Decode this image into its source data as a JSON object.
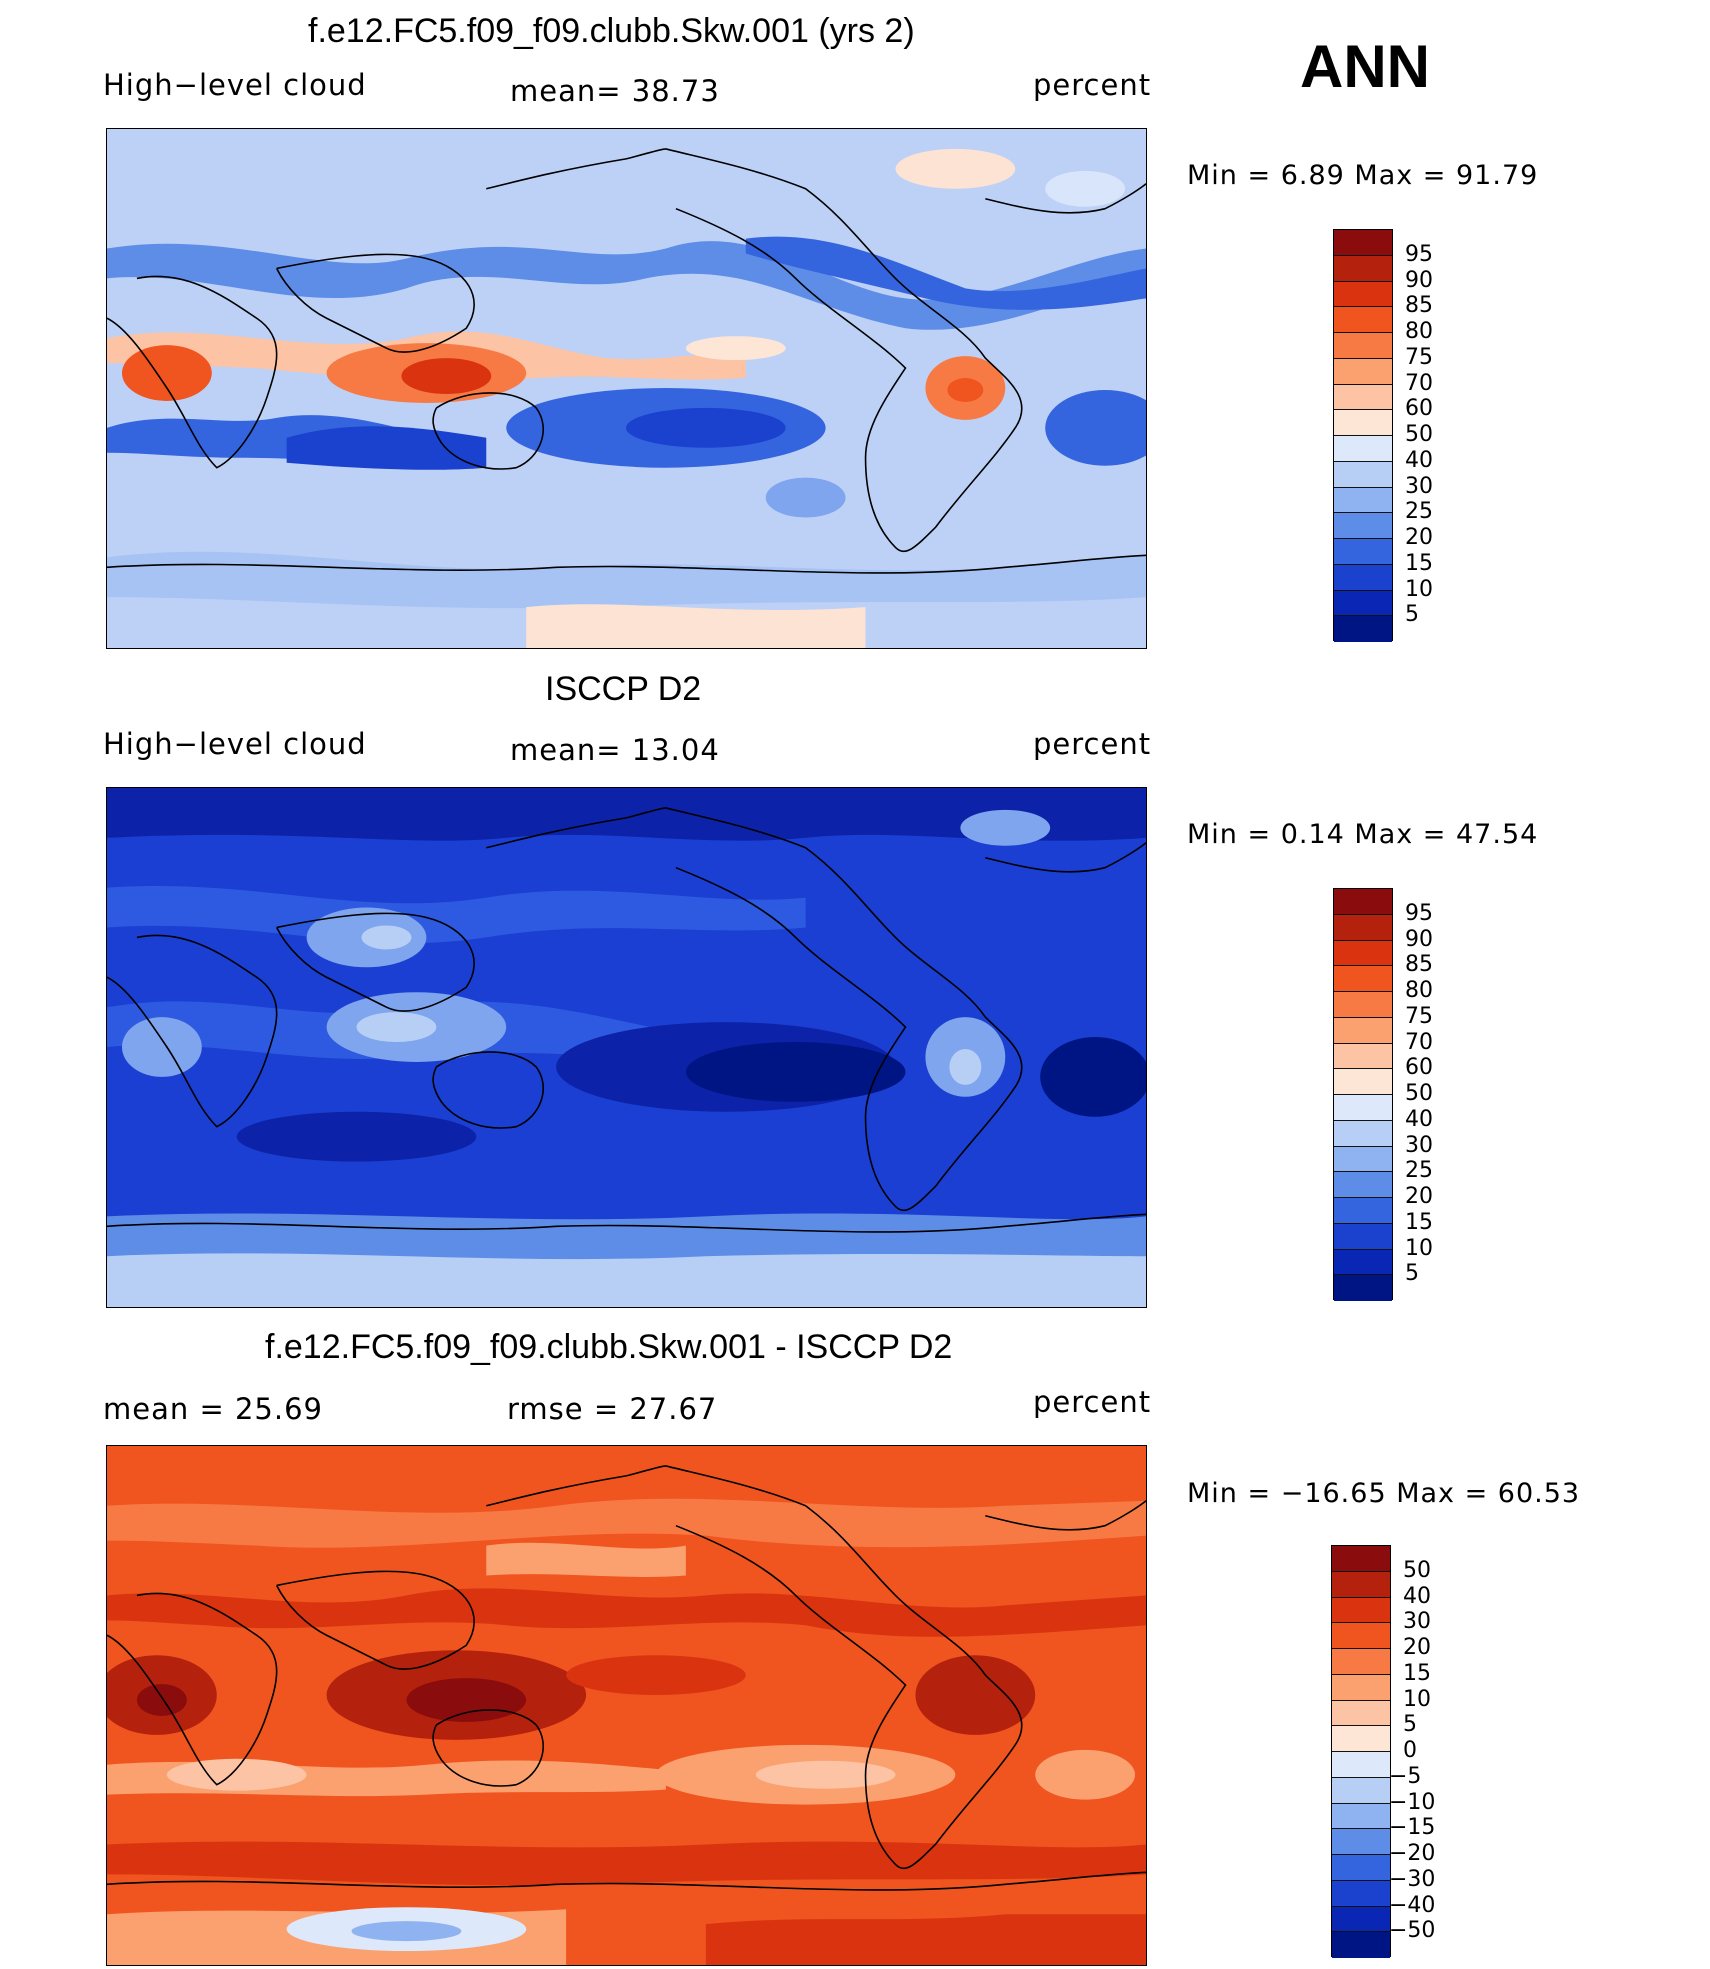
{
  "season": "ANN",
  "panels": [
    {
      "title": "f.e12.FC5.f09_f09.clubb.Skw.001 (yrs 2)",
      "left_label": "High−level cloud",
      "center_label": "mean=   38.73",
      "right_label": "percent",
      "minmax": "Min  =     6.89  Max  =    91.79",
      "colorbar_ticks": [
        "95",
        "90",
        "85",
        "80",
        "75",
        "70",
        "60",
        "50",
        "40",
        "30",
        "25",
        "20",
        "15",
        "10",
        "5"
      ],
      "colorbar_colors": [
        "#8b0c0c",
        "#b4220e",
        "#d9340f",
        "#f0541f",
        "#f77a45",
        "#fba06f",
        "#fcc3a4",
        "#fee6d6",
        "#dde8fa",
        "#b8cff5",
        "#8fb2f0",
        "#5e8de8",
        "#3565de",
        "#1a42cf",
        "#0a26b4",
        "#001584"
      ],
      "field_colors": [
        "#bdd1f6",
        "#a6c3f3",
        "#7ea5ee",
        "#d8e5fb",
        "#fde3d3"
      ]
    },
    {
      "title": "ISCCP D2",
      "left_label": "High−level cloud",
      "center_label": "mean=   13.04",
      "right_label": "percent",
      "minmax": "Min  =     0.14  Max  =    47.54",
      "colorbar_ticks": [
        "95",
        "90",
        "85",
        "80",
        "75",
        "70",
        "60",
        "50",
        "40",
        "30",
        "25",
        "20",
        "15",
        "10",
        "5"
      ],
      "colorbar_colors": [
        "#8b0c0c",
        "#b4220e",
        "#d9340f",
        "#f0541f",
        "#f77a45",
        "#fba06f",
        "#fcc3a4",
        "#fee6d6",
        "#dde8fa",
        "#b8cff5",
        "#8fb2f0",
        "#5e8de8",
        "#3565de",
        "#1a42cf",
        "#0a26b4",
        "#001584"
      ],
      "field_colors": [
        "#1a3fd2",
        "#0c22a8",
        "#2d5ae0",
        "#7ea5ee",
        "#b8cff5"
      ]
    },
    {
      "title": "f.e12.FC5.f09_f09.clubb.Skw.001 - ISCCP D2",
      "left_label": "mean  =    25.69",
      "center_label": "rmse  =    27.67",
      "right_label": "percent",
      "minmax": "Min  = −16.65  Max  =    60.53",
      "colorbar_ticks": [
        "50",
        "40",
        "30",
        "20",
        "15",
        "10",
        "5",
        "0",
        "−5",
        "−10",
        "−15",
        "−20",
        "−30",
        "−40",
        "−50"
      ],
      "colorbar_colors": [
        "#8b0c0c",
        "#b4220e",
        "#d9340f",
        "#f0541f",
        "#f77a45",
        "#fba06f",
        "#fcc3a4",
        "#fee6d6",
        "#dde8fa",
        "#b8cff5",
        "#8fb2f0",
        "#5e8de8",
        "#3565de",
        "#1a42cf",
        "#0a26b4",
        "#001584"
      ],
      "field_colors": [
        "#f0541f",
        "#d9340f",
        "#f77a45",
        "#fba06f",
        "#b4220e"
      ]
    }
  ]
}
